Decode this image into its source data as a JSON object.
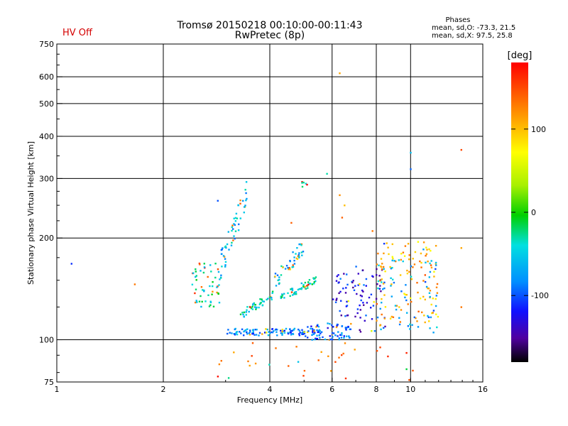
{
  "chart_data": {
    "type": "scatter",
    "title": "Tromsø 20150218 00:10:00-00:11:43",
    "subtitle": "RwPretec (8p)",
    "status_label": "HV Off",
    "xlabel": "Frequency [MHz]",
    "ylabel": "Stationary phase Virtual Height [km]",
    "x_scale": "log",
    "y_scale": "log",
    "xlim": [
      1,
      16
    ],
    "ylim": [
      75,
      750
    ],
    "x_ticks": [
      1,
      2,
      4,
      6,
      8,
      10,
      16
    ],
    "x_gridlines": [
      2,
      4,
      6,
      8,
      10
    ],
    "y_ticks": [
      75,
      100,
      200,
      300,
      400,
      500,
      600,
      750
    ],
    "y_gridlines": [
      100,
      200,
      300,
      400,
      500,
      600
    ],
    "grid": true,
    "phases": {
      "heading": "Phases",
      "line_o": "mean, sd,O: -73.3, 21.5",
      "line_x": "mean, sd,X:  97.5, 25.8"
    },
    "colorbar": {
      "unit": "[deg]",
      "ticks": [
        {
          "value": 100,
          "label": "100"
        },
        {
          "value": 0,
          "label": "0"
        },
        {
          "value": -100,
          "label": "-100"
        }
      ],
      "range": [
        -180,
        180
      ]
    },
    "groups": [
      {
        "name": "o-trace-low-1",
        "f": [
          3.0,
          5.6
        ],
        "h": [
          103,
          108
        ],
        "phase": -85,
        "n": 110
      },
      {
        "name": "o-trace-low-2",
        "f": [
          5.0,
          6.8
        ],
        "h": [
          100,
          112
        ],
        "phase": -95,
        "n": 70
      },
      {
        "name": "o-trace-rising-1",
        "f": [
          2.9,
          3.45
        ],
        "h": [
          150,
          300
        ],
        "phase": -60,
        "n": 55
      },
      {
        "name": "o-trace-rising-2",
        "f": [
          3.3,
          4.1
        ],
        "h": [
          115,
          140
        ],
        "phase": -40,
        "n": 45
      },
      {
        "name": "o-trace-upper-1",
        "f": [
          4.1,
          5.0
        ],
        "h": [
          140,
          200
        ],
        "phase": -60,
        "n": 45
      },
      {
        "name": "o-trace-mid",
        "f": [
          4.2,
          5.4
        ],
        "h": [
          128,
          155
        ],
        "phase": -40,
        "n": 55
      },
      {
        "name": "o-trace-left",
        "f": [
          2.4,
          2.9
        ],
        "h": [
          125,
          170
        ],
        "phase": -35,
        "n": 55
      },
      {
        "name": "scatter-right-1",
        "f": [
          6.0,
          8.5
        ],
        "h": [
          105,
          165
        ],
        "phase": -120,
        "n": 90
      },
      {
        "name": "scatter-right-2",
        "f": [
          8.0,
          12.0
        ],
        "h": [
          110,
          195
        ],
        "phase": 100,
        "n": 110
      },
      {
        "name": "scatter-right-3",
        "f": [
          8.0,
          12.0
        ],
        "h": [
          100,
          175
        ],
        "phase": -70,
        "n": 60
      },
      {
        "name": "low-noise",
        "f": [
          2.8,
          10.5
        ],
        "h": [
          76,
          98
        ],
        "phase": 140,
        "n": 35
      },
      {
        "name": "high-ext",
        "f": [
          4.9,
          5.1
        ],
        "h": [
          282,
          295
        ],
        "phase": 150,
        "n": 6
      }
    ],
    "points": [
      {
        "f": 1.1,
        "h": 168,
        "phase": -110
      },
      {
        "f": 1.66,
        "h": 146,
        "phase": 130
      },
      {
        "f": 2.85,
        "h": 258,
        "phase": -100
      },
      {
        "f": 5.8,
        "h": 310,
        "phase": -30
      },
      {
        "f": 6.3,
        "h": 615,
        "phase": 110
      },
      {
        "f": 10.0,
        "h": 358,
        "phase": -60
      },
      {
        "f": 10.0,
        "h": 320,
        "phase": -95
      },
      {
        "f": 13.9,
        "h": 365,
        "phase": 150
      },
      {
        "f": 13.9,
        "h": 125,
        "phase": 130
      },
      {
        "f": 13.9,
        "h": 187,
        "phase": 110
      },
      {
        "f": 6.3,
        "h": 268,
        "phase": 120
      },
      {
        "f": 6.5,
        "h": 250,
        "phase": 100
      },
      {
        "f": 6.4,
        "h": 230,
        "phase": 140
      },
      {
        "f": 7.8,
        "h": 210,
        "phase": 130
      },
      {
        "f": 4.6,
        "h": 222,
        "phase": 140
      }
    ]
  }
}
